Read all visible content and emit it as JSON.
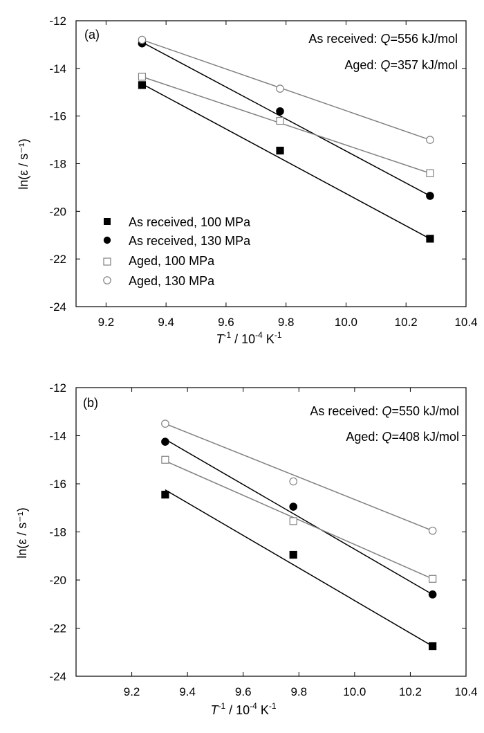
{
  "chart_data": [
    {
      "type": "scatter",
      "panel_label": "(a)",
      "xlabel_main": "T",
      "xlabel_sup1": "-1",
      "xlabel_rest": " / 10",
      "xlabel_sup2": "-4",
      "xlabel_unit": " K",
      "xlabel_sup3": "-1",
      "ylabel": "ln(ε / s⁻¹)",
      "xlim": [
        9.1,
        10.4
      ],
      "ylim": [
        -24,
        -12
      ],
      "xticks": [
        "9.2",
        "9.4",
        "9.6",
        "9.8",
        "10.0",
        "10.2",
        "10.4"
      ],
      "xtick_values": [
        9.2,
        9.4,
        9.6,
        9.8,
        10.0,
        10.2,
        10.4
      ],
      "yticks": [
        "-12",
        "-14",
        "-16",
        "-18",
        "-20",
        "-22",
        "-24"
      ],
      "ytick_values": [
        -12,
        -14,
        -16,
        -18,
        -20,
        -22,
        -24
      ],
      "annotations": [
        {
          "prefix": "As received: ",
          "q": "Q",
          "value": "=556 kJ/mol"
        },
        {
          "prefix": "Aged: ",
          "q": "Q",
          "value": "=357 kJ/mol"
        }
      ],
      "legend": {
        "position": "bottom-left"
      },
      "series": [
        {
          "name": "As received, 100 MPa",
          "marker": "filled-square",
          "color": "#000000",
          "x": [
            9.32,
            9.78,
            10.28
          ],
          "y": [
            -14.7,
            -17.45,
            -21.15
          ],
          "fit": [
            [
              9.32,
              -14.65
            ],
            [
              10.28,
              -21.15
            ]
          ]
        },
        {
          "name": "As received, 130 MPa",
          "marker": "filled-circle",
          "color": "#000000",
          "x": [
            9.32,
            9.78,
            10.28
          ],
          "y": [
            -12.95,
            -15.8,
            -19.35
          ],
          "fit": [
            [
              9.32,
              -12.9
            ],
            [
              10.28,
              -19.35
            ]
          ]
        },
        {
          "name": "Aged, 100 MPa",
          "marker": "open-square",
          "color": "#808080",
          "x": [
            9.32,
            9.78,
            10.28
          ],
          "y": [
            -14.35,
            -16.2,
            -18.4
          ],
          "fit": [
            [
              9.32,
              -14.35
            ],
            [
              10.28,
              -18.4
            ]
          ]
        },
        {
          "name": "Aged, 130 MPa",
          "marker": "open-circle",
          "color": "#808080",
          "x": [
            9.32,
            9.78,
            10.28
          ],
          "y": [
            -12.8,
            -14.85,
            -17.0
          ],
          "fit": [
            [
              9.32,
              -12.8
            ],
            [
              10.28,
              -17.0
            ]
          ]
        }
      ]
    },
    {
      "type": "scatter",
      "panel_label": "(b)",
      "xlabel_main": "T",
      "xlabel_sup1": "-1",
      "xlabel_rest": " / 10",
      "xlabel_sup2": "-4",
      "xlabel_unit": " K",
      "xlabel_sup3": "-1",
      "ylabel": "ln(ε / s⁻¹)",
      "xlim": [
        9.0,
        10.4
      ],
      "ylim": [
        -24,
        -12
      ],
      "xticks": [
        "9.2",
        "9.4",
        "9.6",
        "9.8",
        "10.0",
        "10.2",
        "10.4"
      ],
      "xtick_values": [
        9.2,
        9.4,
        9.6,
        9.8,
        10.0,
        10.2,
        10.4
      ],
      "yticks": [
        "-12",
        "-14",
        "-16",
        "-18",
        "-20",
        "-22",
        "-24"
      ],
      "ytick_values": [
        -12,
        -14,
        -16,
        -18,
        -20,
        -22,
        -24
      ],
      "annotations": [
        {
          "prefix": "As received: ",
          "q": "Q",
          "value": "=550 kJ/mol"
        },
        {
          "prefix": "Aged: ",
          "q": "Q",
          "value": "=408 kJ/mol"
        }
      ],
      "legend": {
        "position": "none"
      },
      "series": [
        {
          "name": "As received, 100 MPa",
          "marker": "filled-square",
          "color": "#000000",
          "x": [
            9.32,
            9.78,
            10.28
          ],
          "y": [
            -16.45,
            -18.95,
            -22.75
          ],
          "fit": [
            [
              9.32,
              -16.25
            ],
            [
              10.28,
              -22.75
            ]
          ]
        },
        {
          "name": "As received, 130 MPa",
          "marker": "filled-circle",
          "color": "#000000",
          "x": [
            9.32,
            9.78,
            10.28
          ],
          "y": [
            -14.25,
            -16.95,
            -20.6
          ],
          "fit": [
            [
              9.32,
              -14.15
            ],
            [
              10.28,
              -20.6
            ]
          ]
        },
        {
          "name": "Aged, 100 MPa",
          "marker": "open-square",
          "color": "#808080",
          "x": [
            9.32,
            9.78,
            10.28
          ],
          "y": [
            -15.0,
            -17.55,
            -19.95
          ],
          "fit": [
            [
              9.32,
              -15.05
            ],
            [
              10.28,
              -19.95
            ]
          ]
        },
        {
          "name": "Aged, 130 MPa",
          "marker": "open-circle",
          "color": "#808080",
          "x": [
            9.32,
            9.78,
            10.28
          ],
          "y": [
            -13.5,
            -15.9,
            -17.95
          ],
          "fit": [
            [
              9.32,
              -13.5
            ],
            [
              10.28,
              -17.95
            ]
          ]
        }
      ]
    }
  ]
}
